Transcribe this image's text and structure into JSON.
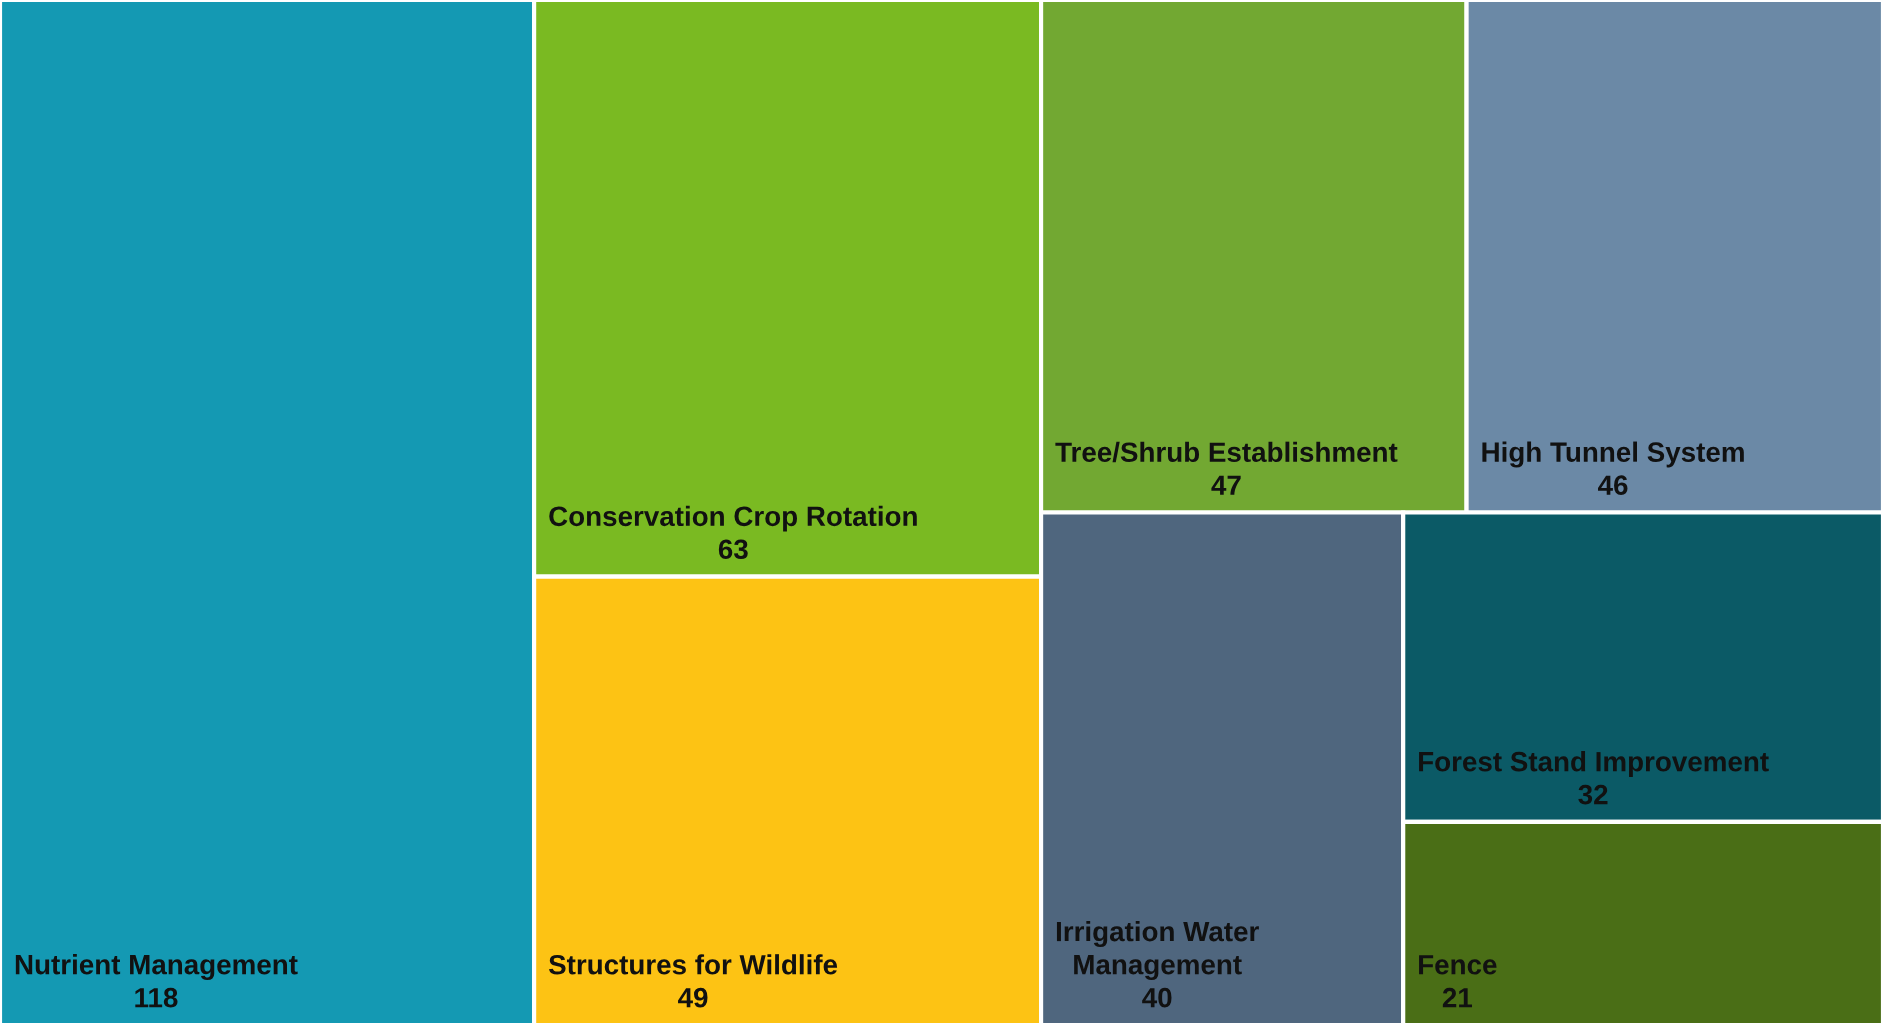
{
  "chart_data": {
    "type": "other",
    "categories": [
      "Nutrient Management",
      "Conservation Crop Rotation",
      "Structures for Wildlife",
      "Tree/Shrub Establishment",
      "High Tunnel System",
      "Irrigation Water Management",
      "Forest Stand Improvement",
      "Fence"
    ],
    "values": [
      118,
      63,
      49,
      47,
      46,
      40,
      32,
      21
    ],
    "colors": [
      "#1499b3",
      "#7aba22",
      "#fdc314",
      "#72a832",
      "#6b89a6",
      "#4f667e",
      "#0b5a66",
      "#4a6e16"
    ],
    "data_labels": true
  }
}
